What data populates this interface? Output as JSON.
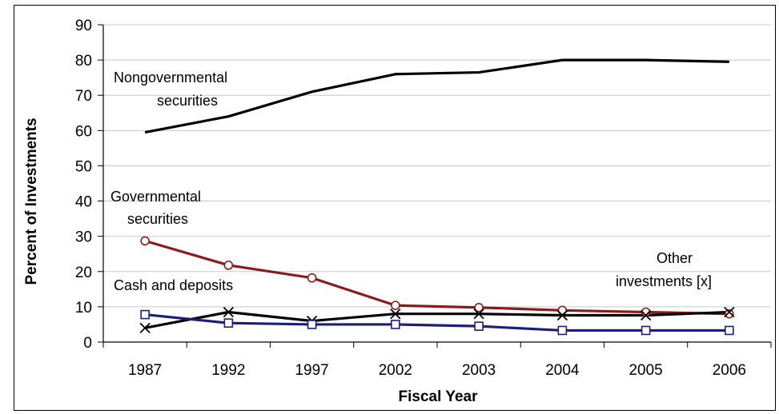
{
  "chart_data": {
    "type": "line",
    "title": "",
    "xlabel": "Fiscal Year",
    "ylabel": "Percent of Investments",
    "ylim": [
      0,
      90
    ],
    "yticks": [
      0,
      10,
      20,
      30,
      40,
      50,
      60,
      70,
      80,
      90
    ],
    "grid": true,
    "legend": "none",
    "categories": [
      "1987",
      "1992",
      "1997",
      "2002",
      "2003",
      "2004",
      "2005",
      "2006"
    ],
    "series": [
      {
        "key": "nongov",
        "values": [
          59.5,
          64,
          71,
          76,
          76.5,
          80,
          80,
          79.5
        ],
        "color": "#000000",
        "marker": "none"
      },
      {
        "key": "gov",
        "values": [
          28.7,
          21.8,
          18.2,
          10.4,
          9.8,
          9,
          8.5,
          8
        ],
        "color": "#8b1a1a",
        "marker": "circle"
      },
      {
        "key": "other",
        "values": [
          4,
          8.5,
          6,
          8,
          8,
          7.6,
          7.6,
          8.5
        ],
        "color": "#000000",
        "marker": "x"
      },
      {
        "key": "cash",
        "values": [
          7.8,
          5.4,
          5,
          5,
          4.5,
          3.3,
          3.3,
          3.3
        ],
        "color": "#1c1f7a",
        "marker": "square"
      }
    ],
    "annotations": [
      {
        "key": "nongov",
        "lines": [
          "Nongovernmental",
          "securities"
        ]
      },
      {
        "key": "gov",
        "lines": [
          "Governmental",
          "securities"
        ]
      },
      {
        "key": "cash",
        "lines": [
          "Cash and deposits"
        ]
      },
      {
        "key": "other",
        "lines": [
          "Other",
          "investments [x]"
        ]
      }
    ]
  }
}
